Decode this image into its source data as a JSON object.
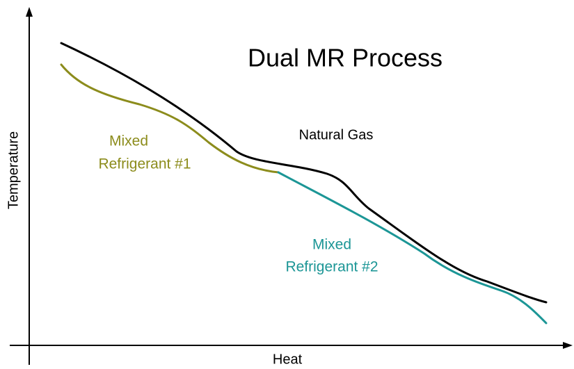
{
  "title": "Dual MR Process",
  "axes": {
    "x_label": "Heat",
    "y_label": "Temperature"
  },
  "curves": [
    {
      "label_lines": [
        "Natural Gas"
      ]
    },
    {
      "label_lines": [
        "Mixed",
        "Refrigerant #1"
      ]
    },
    {
      "label_lines": [
        "Mixed",
        "Refrigerant #2"
      ]
    }
  ]
}
